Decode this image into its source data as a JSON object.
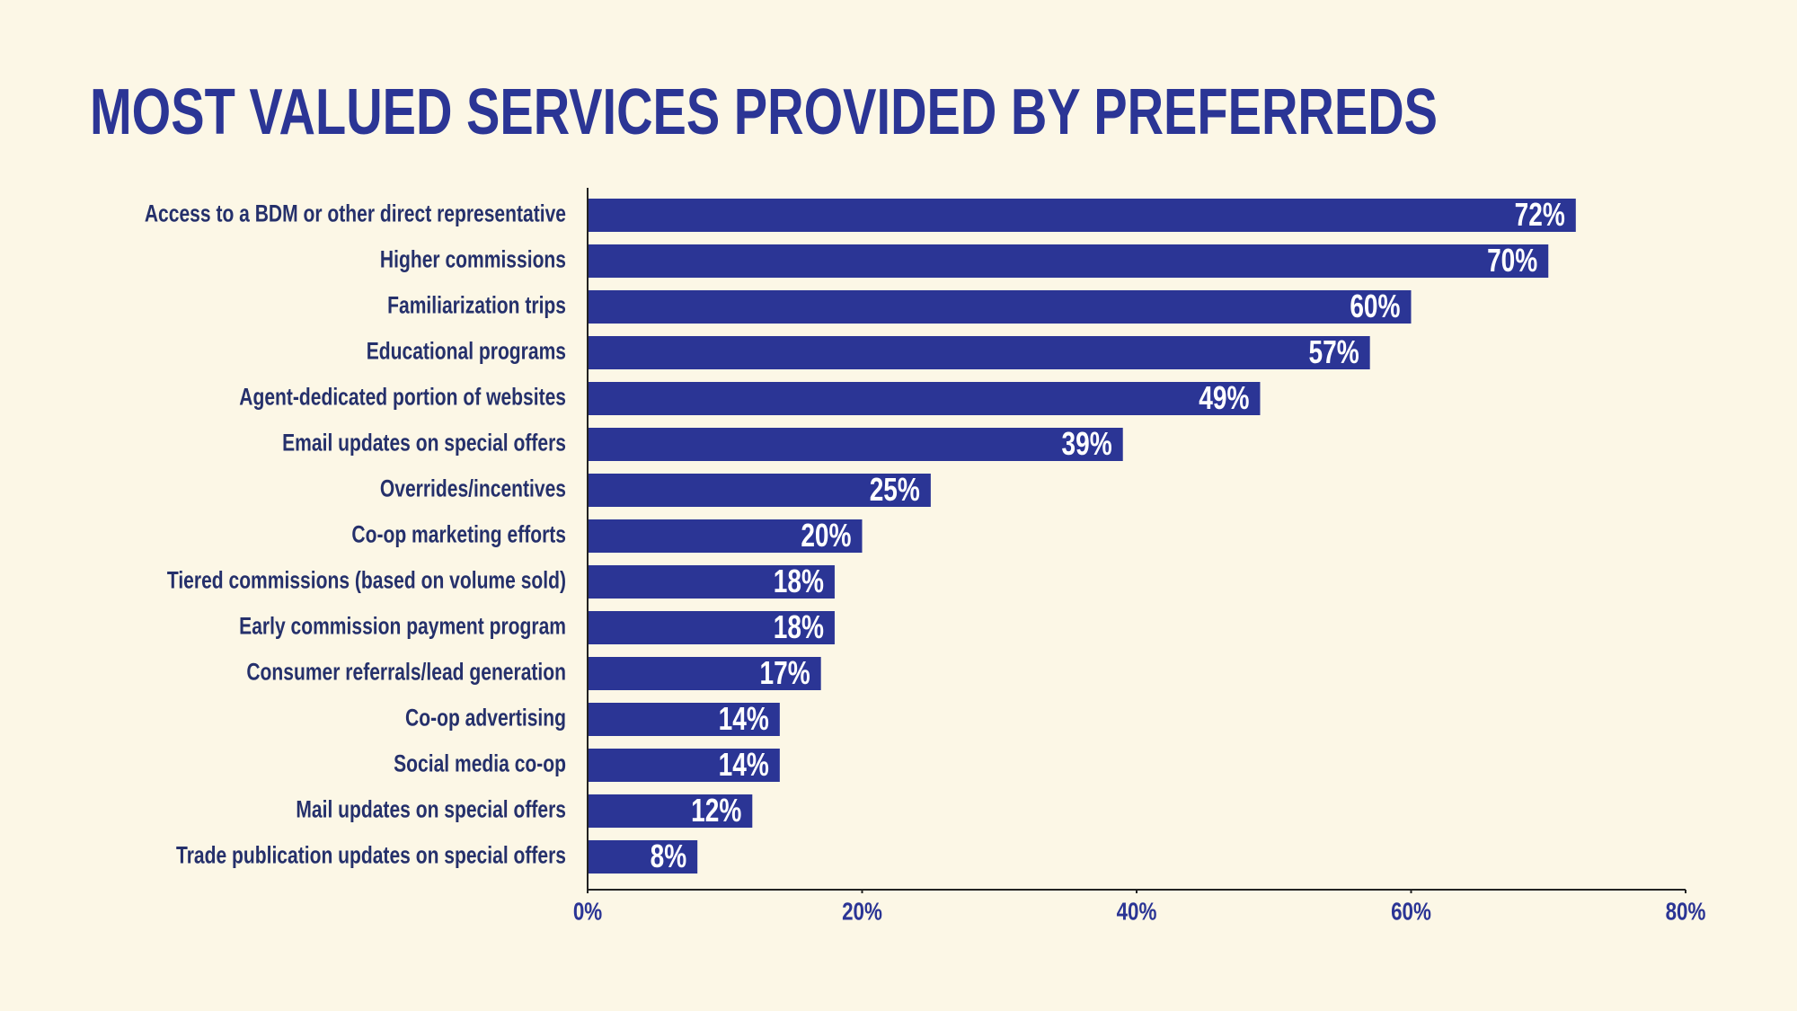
{
  "chart_data": {
    "type": "hbar",
    "title": "MOST VALUED SERVICES PROVIDED BY PREFERREDS",
    "categories": [
      "Access to a BDM or other direct representative",
      "Higher commissions",
      "Familiarization trips",
      "Educational programs",
      "Agent-dedicated portion of websites",
      "Email updates on special offers",
      "Overrides/incentives",
      "Co-op marketing efforts",
      "Tiered commissions (based on volume sold)",
      "Early commission payment program",
      "Consumer referrals/lead generation",
      "Co-op advertising",
      "Social media co-op",
      "Mail updates on special offers",
      "Trade publication updates on special offers"
    ],
    "values": [
      72,
      70,
      60,
      57,
      49,
      39,
      25,
      20,
      18,
      18,
      17,
      14,
      14,
      12,
      8
    ],
    "value_labels": [
      "72%",
      "70%",
      "60%",
      "57%",
      "49%",
      "39%",
      "25%",
      "20%",
      "18%",
      "18%",
      "17%",
      "14%",
      "14%",
      "12%",
      "8%"
    ],
    "color": "#2b3595",
    "xlim": [
      0,
      80
    ],
    "xticks": [
      {
        "value": 0,
        "label": "0%"
      },
      {
        "value": 20,
        "label": "20%"
      },
      {
        "value": 40,
        "label": "40%"
      },
      {
        "value": 60,
        "label": "60%"
      },
      {
        "value": 80,
        "label": "80%"
      }
    ]
  }
}
